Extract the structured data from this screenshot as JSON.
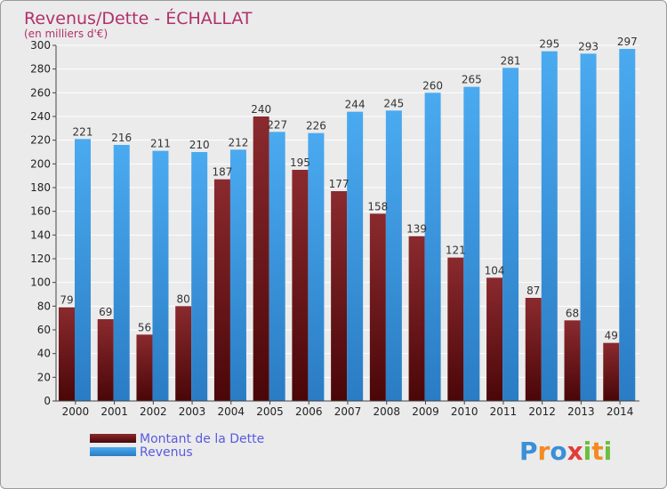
{
  "chart_data": {
    "type": "bar",
    "title": "Revenus/Dette - ÉCHALLAT",
    "subtitle": "(en milliers d'€)",
    "categories": [
      "2000",
      "2001",
      "2002",
      "2003",
      "2004",
      "2005",
      "2006",
      "2007",
      "2008",
      "2009",
      "2010",
      "2011",
      "2012",
      "2013",
      "2014"
    ],
    "series": [
      {
        "name": "Montant de la Dette",
        "color": "#7a1f24",
        "values": [
          79,
          69,
          56,
          80,
          187,
          240,
          195,
          177,
          158,
          139,
          121,
          104,
          87,
          68,
          49
        ]
      },
      {
        "name": "Revenus",
        "color": "#3f9de6",
        "values": [
          221,
          216,
          211,
          210,
          212,
          227,
          226,
          244,
          245,
          260,
          265,
          281,
          295,
          293,
          297
        ]
      }
    ],
    "ylim": [
      0,
      300
    ],
    "yticks": [
      "0",
      "20",
      "40",
      "60",
      "80",
      "100",
      "120",
      "140",
      "160",
      "180",
      "200",
      "220",
      "240",
      "260",
      "280",
      "300"
    ],
    "grid": true,
    "legend_position": "bottom-left"
  },
  "logo": {
    "letters": [
      {
        "ch": "P",
        "color": "#3a8fd8"
      },
      {
        "ch": "r",
        "color": "#f28b22"
      },
      {
        "ch": "o",
        "color": "#3a8fd8"
      },
      {
        "ch": "x",
        "color": "#e23b3b"
      },
      {
        "ch": "i",
        "color": "#6cbf3c"
      },
      {
        "ch": "t",
        "color": "#f28b22"
      },
      {
        "ch": "i",
        "color": "#6cbf3c"
      }
    ]
  }
}
